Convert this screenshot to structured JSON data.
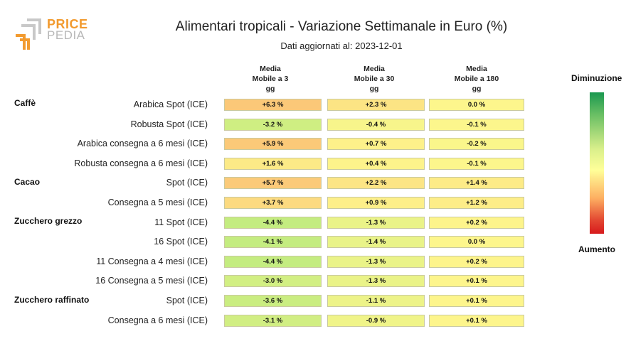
{
  "logo": {
    "word1": "PRICE",
    "word2": "PEDIA"
  },
  "chart_data": {
    "type": "table",
    "title": "Alimentari tropicali - Variazione Settimanale in Euro (%)",
    "subtitle": "Dati aggiornati al: 2023-12-01",
    "columns": [
      {
        "line1": "Media",
        "line2": "Mobile a 3",
        "line3": "gg"
      },
      {
        "line1": "Media",
        "line2": "Mobile a 30",
        "line3": "gg"
      },
      {
        "line1": "Media",
        "line2": "Mobile a 180",
        "line3": "gg"
      }
    ],
    "groups": [
      "Caffè",
      "Cacao",
      "Zucchero grezzo",
      "Zucchero raffinato"
    ],
    "rows": [
      {
        "group": "Caffè",
        "label": "Arabica Spot (ICE)",
        "values": [
          "+6.3 %",
          "+2.3 %",
          "0.0 %"
        ],
        "num": [
          6.3,
          2.3,
          0.0
        ]
      },
      {
        "group": "Caffè",
        "label": "Robusta Spot (ICE)",
        "values": [
          "-3.2 %",
          "-0.4 %",
          "-0.1 %"
        ],
        "num": [
          -3.2,
          -0.4,
          -0.1
        ]
      },
      {
        "group": "Caffè",
        "label": "Arabica consegna a 6 mesi (ICE)",
        "values": [
          "+5.9 %",
          "+0.7 %",
          "-0.2 %"
        ],
        "num": [
          5.9,
          0.7,
          -0.2
        ]
      },
      {
        "group": "Caffè",
        "label": "Robusta consegna a 6 mesi (ICE)",
        "values": [
          "+1.6 %",
          "+0.4 %",
          "-0.1 %"
        ],
        "num": [
          1.6,
          0.4,
          -0.1
        ]
      },
      {
        "group": "Cacao",
        "label": "Spot (ICE)",
        "values": [
          "+5.7 %",
          "+2.2 %",
          "+1.4 %"
        ],
        "num": [
          5.7,
          2.2,
          1.4
        ]
      },
      {
        "group": "Cacao",
        "label": "Consegna a 5 mesi (ICE)",
        "values": [
          "+3.7 %",
          "+0.9 %",
          "+1.2 %"
        ],
        "num": [
          3.7,
          0.9,
          1.2
        ]
      },
      {
        "group": "Zucchero grezzo",
        "label": "11 Spot (ICE)",
        "values": [
          "-4.4 %",
          "-1.3 %",
          "+0.2 %"
        ],
        "num": [
          -4.4,
          -1.3,
          0.2
        ]
      },
      {
        "group": "Zucchero grezzo",
        "label": "16 Spot (ICE)",
        "values": [
          "-4.1 %",
          "-1.4 %",
          "0.0 %"
        ],
        "num": [
          -4.1,
          -1.4,
          0.0
        ]
      },
      {
        "group": "Zucchero grezzo",
        "label": "11 Consegna a 4 mesi (ICE)",
        "values": [
          "-4.4 %",
          "-1.3 %",
          "+0.2 %"
        ],
        "num": [
          -4.4,
          -1.3,
          0.2
        ]
      },
      {
        "group": "Zucchero grezzo",
        "label": "16 Consegna a 5 mesi (ICE)",
        "values": [
          "-3.0 %",
          "-1.3 %",
          "+0.1 %"
        ],
        "num": [
          -3.0,
          -1.3,
          0.1
        ]
      },
      {
        "group": "Zucchero raffinato",
        "label": "Spot (ICE)",
        "values": [
          "-3.6 %",
          "-1.1 %",
          "+0.1 %"
        ],
        "num": [
          -3.6,
          -1.1,
          0.1
        ]
      },
      {
        "group": "Zucchero raffinato",
        "label": "Consegna a 6 mesi (ICE)",
        "values": [
          "-3.1 %",
          "-0.9 %",
          "+0.1 %"
        ],
        "num": [
          -3.1,
          -0.9,
          0.1
        ]
      }
    ],
    "legend": {
      "top": "Diminuzione",
      "bottom": "Aumento"
    }
  }
}
